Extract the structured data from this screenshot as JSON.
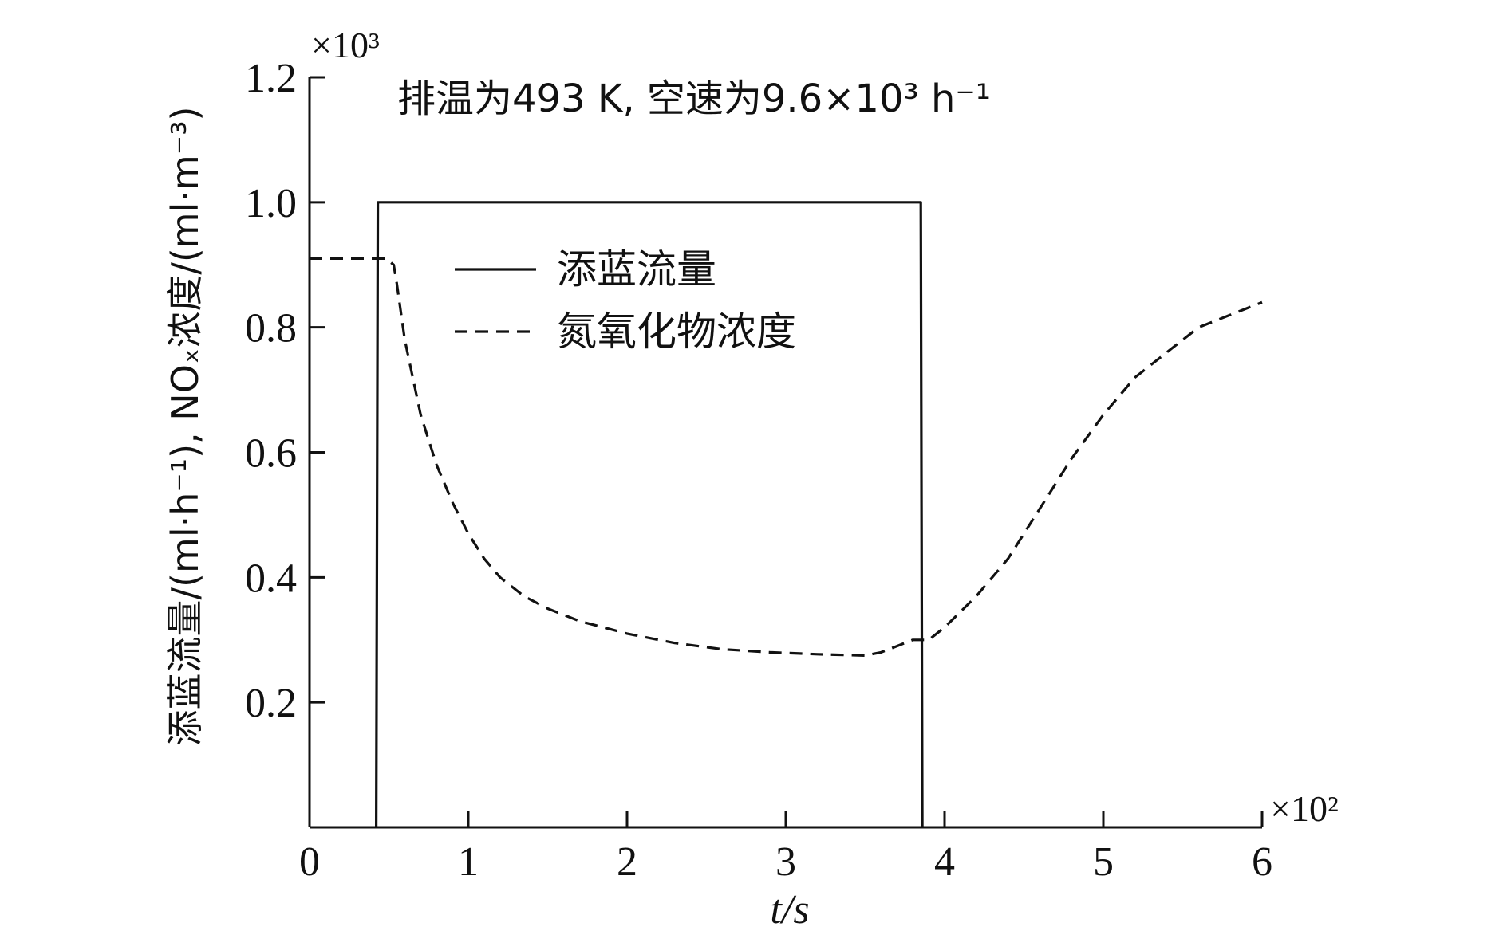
{
  "chart_data": {
    "type": "line",
    "annotation": "排温为493 K, 空速为9.6×10³ h⁻¹",
    "xlabel": "t/s",
    "x_multiplier": "×10²",
    "ylabel": "添蓝流量/(ml·h⁻¹), NOₓ浓度/(ml·m⁻³)",
    "y_multiplier": "×10³",
    "xlim": [
      0,
      6
    ],
    "ylim": [
      0,
      1.2
    ],
    "x_ticks": [
      "0",
      "1",
      "2",
      "3",
      "4",
      "5",
      "6"
    ],
    "y_ticks": [
      "0.2",
      "0.4",
      "0.6",
      "0.8",
      "1.0",
      "1.2"
    ],
    "grid": false,
    "legend_position": "upper-center",
    "series": [
      {
        "name": "添蓝流量",
        "style": "solid",
        "x": [
          0.42,
          0.43,
          3.85,
          3.86
        ],
        "y": [
          0,
          1.0,
          1.0,
          0
        ]
      },
      {
        "name": "氮氧化物浓度",
        "style": "dashed",
        "x": [
          0,
          0.3,
          0.48,
          0.53,
          0.55,
          0.6,
          0.7,
          0.8,
          0.9,
          1.0,
          1.1,
          1.2,
          1.35,
          1.5,
          1.7,
          2.0,
          2.3,
          2.6,
          2.9,
          3.2,
          3.5,
          3.6,
          3.7,
          3.8,
          3.9,
          4.0,
          4.2,
          4.4,
          4.6,
          4.8,
          5.0,
          5.2,
          5.4,
          5.6,
          5.8,
          6.0
        ],
        "y": [
          0.91,
          0.91,
          0.91,
          0.9,
          0.87,
          0.78,
          0.66,
          0.58,
          0.52,
          0.47,
          0.43,
          0.4,
          0.37,
          0.35,
          0.33,
          0.31,
          0.295,
          0.285,
          0.28,
          0.277,
          0.275,
          0.28,
          0.29,
          0.3,
          0.3,
          0.32,
          0.37,
          0.43,
          0.51,
          0.59,
          0.66,
          0.72,
          0.76,
          0.8,
          0.82,
          0.84
        ]
      }
    ]
  }
}
